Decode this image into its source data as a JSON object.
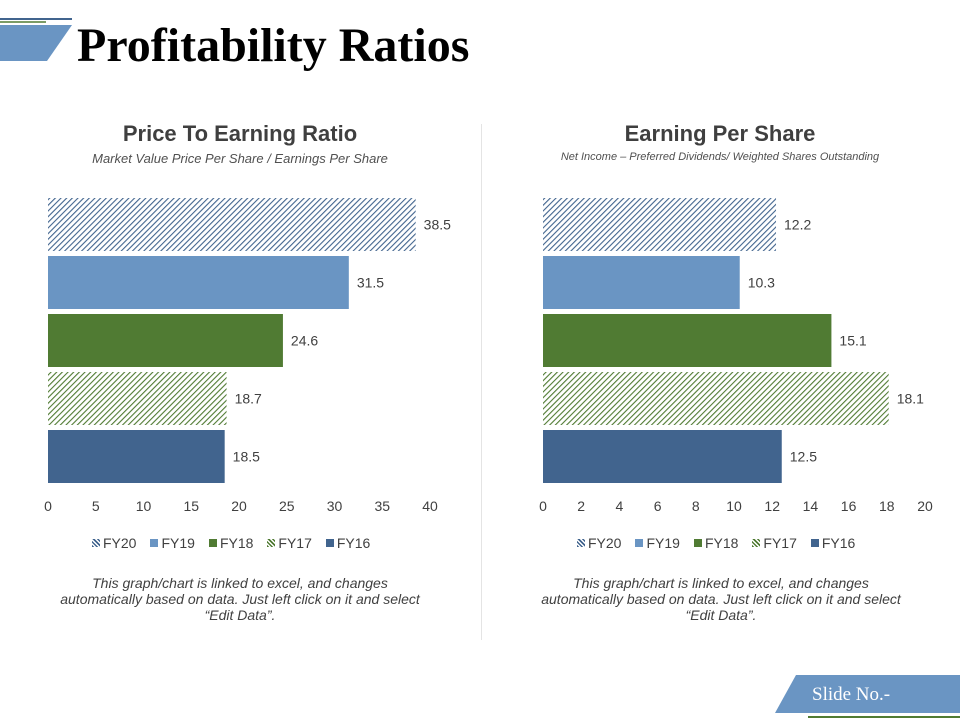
{
  "slide": {
    "title": "Profitability Ratios",
    "slide_no": "Slide No.-",
    "colors": {
      "accent": "#6a95c3",
      "accent_dark": "#41648e",
      "green": "#507b33"
    }
  },
  "charts": [
    {
      "title": "Price To Earning Ratio",
      "subtitle": "Market Value Price Per Share / Earnings Per Share",
      "note": "This graph/chart is linked to excel, and changes automatically based on data. Just left click on it and select “Edit Data”.",
      "legend": [
        {
          "label": "FY20",
          "style": "hatch-blue"
        },
        {
          "label": "FY19",
          "style": "solid-lightblue"
        },
        {
          "label": "FY18",
          "style": "solid-green"
        },
        {
          "label": "FY17",
          "style": "hatch-green"
        },
        {
          "label": "FY16",
          "style": "solid-darkblue"
        }
      ]
    },
    {
      "title": "Earning Per Share",
      "subtitle": "Net Income – Preferred Dividends/ Weighted Shares Outstanding",
      "note": "This graph/chart is linked to excel, and changes automatically based on data. Just left click on it and select “Edit Data”.",
      "legend": [
        {
          "label": "FY20",
          "style": "hatch-blue"
        },
        {
          "label": "FY19",
          "style": "solid-lightblue"
        },
        {
          "label": "FY18",
          "style": "solid-green"
        },
        {
          "label": "FY17",
          "style": "hatch-green"
        },
        {
          "label": "FY16",
          "style": "solid-darkblue"
        }
      ]
    }
  ],
  "chart_data": [
    {
      "type": "bar",
      "orientation": "horizontal",
      "title": "Price To Earning Ratio",
      "subtitle": "Market Value Price Per Share / Earnings Per Share",
      "categories": [
        "FY20",
        "FY19",
        "FY18",
        "FY17",
        "FY16"
      ],
      "values": [
        38.5,
        31.5,
        24.6,
        18.7,
        18.5
      ],
      "xlim": [
        0,
        40
      ],
      "xticks": [
        0,
        5,
        10,
        15,
        20,
        25,
        30,
        35,
        40
      ],
      "grid": false,
      "legend_position": "bottom"
    },
    {
      "type": "bar",
      "orientation": "horizontal",
      "title": "Earning Per Share",
      "subtitle": "Net Income – Preferred Dividends/ Weighted Shares Outstanding",
      "categories": [
        "FY20",
        "FY19",
        "FY18",
        "FY17",
        "FY16"
      ],
      "values": [
        12.2,
        10.3,
        15.1,
        18.1,
        12.5
      ],
      "xlim": [
        0,
        20
      ],
      "xticks": [
        0,
        2,
        4,
        6,
        8,
        10,
        12,
        14,
        16,
        18,
        20
      ],
      "grid": false,
      "legend_position": "bottom"
    }
  ]
}
